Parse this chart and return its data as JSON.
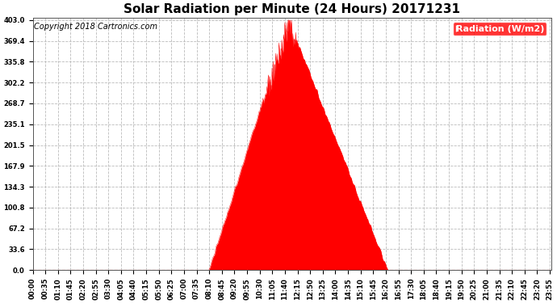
{
  "title": "Solar Radiation per Minute (24 Hours) 20171231",
  "copyright_text": "Copyright 2018 Cartronics.com",
  "legend_label": "Radiation (W/m2)",
  "background_color": "#ffffff",
  "plot_bg_color": "#ffffff",
  "area_color": "#ff0000",
  "line_color": "#ff0000",
  "grid_color": "#bbbbbb",
  "dashed_line_color": "#ff0000",
  "ytick_labels": [
    "0.0",
    "33.6",
    "67.2",
    "100.8",
    "134.3",
    "167.9",
    "201.5",
    "235.1",
    "268.7",
    "302.2",
    "335.8",
    "369.4",
    "403.0"
  ],
  "ytick_values": [
    0.0,
    33.6,
    67.2,
    100.8,
    134.3,
    167.9,
    201.5,
    235.1,
    268.7,
    302.2,
    335.8,
    369.4,
    403.0
  ],
  "ymax": 403.0,
  "ymin": 0.0,
  "sunrise_minute": 490,
  "sunset_minute": 985,
  "peak_minute": 710,
  "peak_value": 403.0,
  "title_fontsize": 11,
  "axis_fontsize": 6,
  "copyright_fontsize": 7,
  "legend_fontsize": 8,
  "xtick_step": 35
}
